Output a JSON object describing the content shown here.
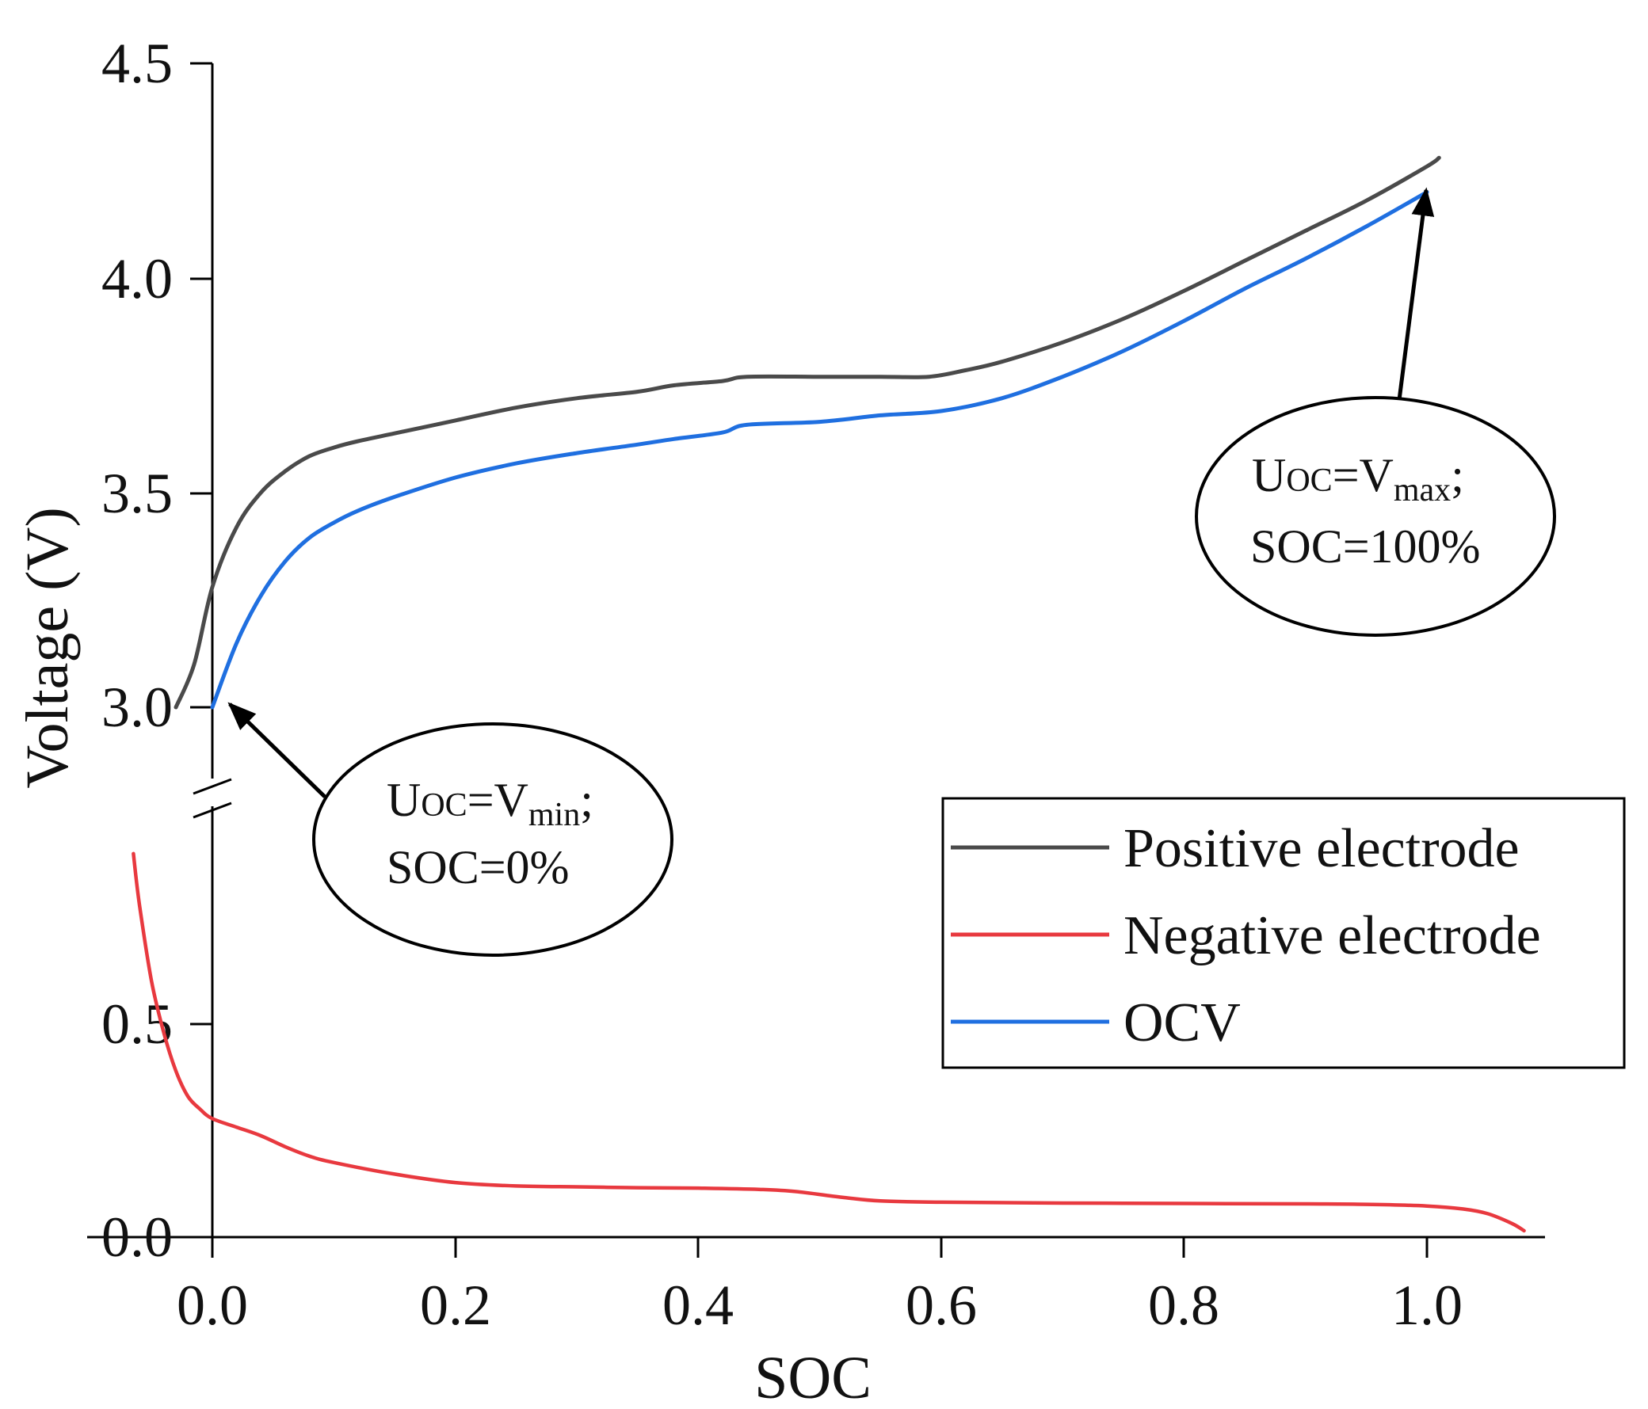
{
  "chart_data": {
    "type": "line",
    "xlabel": "SOC",
    "ylabel": "Voltage (V)",
    "x_ticks": [
      "0.0",
      "0.2",
      "0.4",
      "0.6",
      "0.8",
      "1.0"
    ],
    "y_ticks_lower": [
      "0.0",
      "0.5"
    ],
    "y_ticks_upper": [
      "3.0",
      "3.5",
      "4.0",
      "4.5"
    ],
    "xlim": [
      -0.1,
      1.1
    ],
    "axis_break": "between 0.5 V and 3.0 V",
    "series": [
      {
        "name": "Positive electrode",
        "color": "#4a4a4a",
        "x": [
          -0.03,
          -0.015,
          0.0,
          0.02,
          0.04,
          0.06,
          0.08,
          0.1,
          0.12,
          0.15,
          0.2,
          0.25,
          0.3,
          0.35,
          0.38,
          0.42,
          0.44,
          0.5,
          0.55,
          0.59,
          0.62,
          0.65,
          0.7,
          0.75,
          0.8,
          0.85,
          0.9,
          0.95,
          1.0,
          1.01
        ],
        "y": [
          3.0,
          3.1,
          3.28,
          3.42,
          3.5,
          3.55,
          3.585,
          3.605,
          3.62,
          3.638,
          3.668,
          3.698,
          3.72,
          3.735,
          3.75,
          3.76,
          3.77,
          3.77,
          3.77,
          3.77,
          3.785,
          3.805,
          3.85,
          3.905,
          3.97,
          4.04,
          4.11,
          4.18,
          4.26,
          4.28
        ]
      },
      {
        "name": "Negative electrode",
        "color": "#e8393f",
        "x": [
          -0.065,
          -0.06,
          -0.05,
          -0.04,
          -0.03,
          -0.02,
          -0.01,
          0.0,
          0.02,
          0.04,
          0.06,
          0.08,
          0.1,
          0.15,
          0.2,
          0.25,
          0.3,
          0.35,
          0.4,
          0.45,
          0.48,
          0.52,
          0.55,
          0.6,
          0.7,
          0.8,
          0.9,
          0.95,
          1.0,
          1.03,
          1.05,
          1.07,
          1.08
        ],
        "y": [
          0.9,
          0.78,
          0.6,
          0.48,
          0.39,
          0.33,
          0.3,
          0.278,
          0.258,
          0.238,
          0.212,
          0.19,
          0.175,
          0.148,
          0.128,
          0.12,
          0.118,
          0.116,
          0.115,
          0.112,
          0.107,
          0.093,
          0.085,
          0.082,
          0.08,
          0.079,
          0.078,
          0.077,
          0.073,
          0.066,
          0.055,
          0.032,
          0.015
        ]
      },
      {
        "name": "OCV",
        "color": "#1f6fe0",
        "x": [
          0.0,
          0.02,
          0.04,
          0.06,
          0.08,
          0.1,
          0.12,
          0.15,
          0.2,
          0.25,
          0.3,
          0.35,
          0.38,
          0.42,
          0.44,
          0.5,
          0.55,
          0.6,
          0.65,
          0.7,
          0.75,
          0.8,
          0.85,
          0.9,
          0.95,
          1.0
        ],
        "y": [
          3.0,
          3.15,
          3.26,
          3.34,
          3.395,
          3.43,
          3.458,
          3.49,
          3.535,
          3.568,
          3.592,
          3.612,
          3.625,
          3.64,
          3.658,
          3.665,
          3.68,
          3.69,
          3.72,
          3.77,
          3.83,
          3.9,
          3.975,
          4.045,
          4.12,
          4.2
        ]
      }
    ],
    "annotations": [
      {
        "line1_prefix": "U",
        "line1_sub1": "OC",
        "line1_mid": "=V",
        "line1_sub2": "min",
        "line1_suffix": ";",
        "line2": "SOC=0%",
        "points_to": {
          "x": 0.0,
          "y": 3.0
        }
      },
      {
        "line1_prefix": "U",
        "line1_sub1": "OC",
        "line1_mid": "=V",
        "line1_sub2": "max",
        "line1_suffix": ";",
        "line2": "SOC=100%",
        "points_to": {
          "x": 1.0,
          "y": 4.2
        }
      }
    ],
    "legend": {
      "position": "right",
      "items": [
        "Positive electrode",
        "Negative electrode",
        "OCV"
      ]
    }
  }
}
